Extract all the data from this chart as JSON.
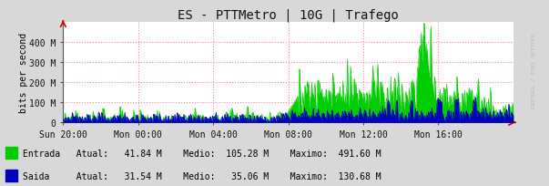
{
  "title": "ES - PTTMetro | 10G | Trafego",
  "ylabel": "bits per second",
  "bg_color": "#d8d8d8",
  "plot_bg_color": "#ffffff",
  "grid_color": "#ff8888",
  "entrada_color": "#00cc00",
  "saida_color": "#0000bb",
  "x_ticks_labels": [
    "Sun 20:00",
    "Mon 00:00",
    "Mon 04:00",
    "Mon 08:00",
    "Mon 12:00",
    "Mon 16:00"
  ],
  "y_ticks_labels": [
    "0",
    "100 M",
    "200 M",
    "300 M",
    "400 M"
  ],
  "ytick_values": [
    0,
    100000000,
    200000000,
    300000000,
    400000000
  ],
  "ymax": 500000000,
  "legend_entrada": "Entrada",
  "legend_saida": "Saida",
  "watermark": "RRDTOOL / TOBI OETIKER",
  "n_points": 1008,
  "entrada_atual": "41.84 M",
  "entrada_medio": "105.28 M",
  "entrada_maximo": "491.60 M",
  "saida_atual": "31.54 M",
  "saida_medio": "35.06 M",
  "saida_maximo": "130.68 M"
}
